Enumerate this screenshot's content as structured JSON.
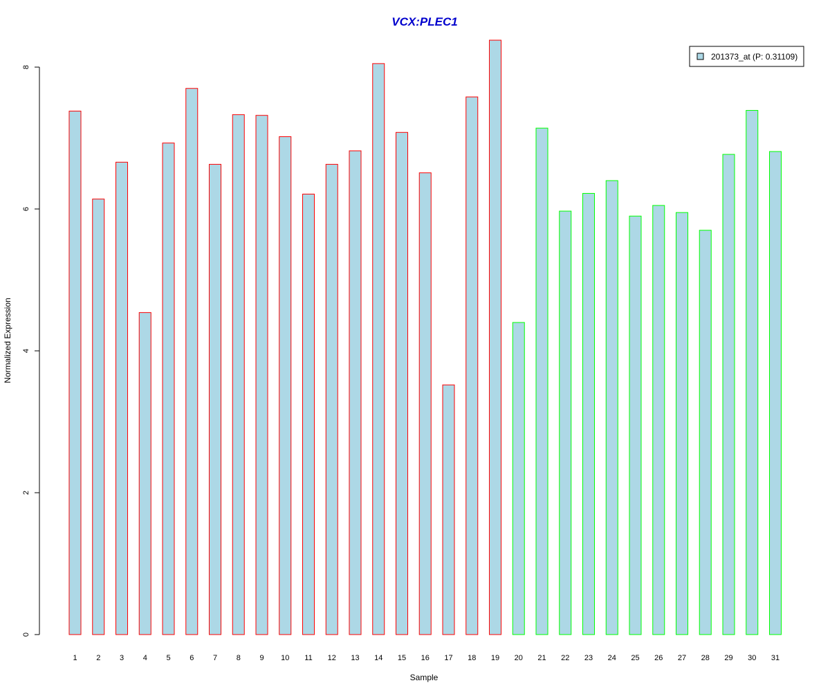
{
  "chart_data": {
    "type": "bar",
    "title": "VCX:PLEC1",
    "title_color": "#0000CD",
    "xlabel": "Sample",
    "ylabel": "Normalized Expression",
    "ylim": [
      0,
      8.4
    ],
    "y_ticks": [
      0,
      2,
      4,
      6,
      8
    ],
    "categories": [
      "1",
      "2",
      "3",
      "4",
      "5",
      "6",
      "7",
      "8",
      "9",
      "10",
      "11",
      "12",
      "13",
      "14",
      "15",
      "16",
      "17",
      "18",
      "19",
      "20",
      "21",
      "22",
      "23",
      "24",
      "25",
      "26",
      "27",
      "28",
      "29",
      "30",
      "31"
    ],
    "series": [
      {
        "name": "201373_at (P: 0.31109)",
        "fill_color": "#ADD8E6",
        "values": [
          7.38,
          6.14,
          6.66,
          4.54,
          6.93,
          7.7,
          6.63,
          7.33,
          7.32,
          7.02,
          6.21,
          6.63,
          6.82,
          8.05,
          7.08,
          6.51,
          3.52,
          7.58,
          8.38,
          4.4,
          7.14,
          5.97,
          6.22,
          6.4,
          5.9,
          6.05,
          5.95,
          5.7,
          6.77,
          7.39,
          6.81
        ]
      }
    ],
    "group_border_colors": [
      "#FF0000",
      "#FF0000",
      "#FF0000",
      "#FF0000",
      "#FF0000",
      "#FF0000",
      "#FF0000",
      "#FF0000",
      "#FF0000",
      "#FF0000",
      "#FF0000",
      "#FF0000",
      "#FF0000",
      "#FF0000",
      "#FF0000",
      "#FF0000",
      "#FF0000",
      "#FF0000",
      "#FF0000",
      "#00FF00",
      "#00FF00",
      "#00FF00",
      "#00FF00",
      "#00FF00",
      "#00FF00",
      "#00FF00",
      "#00FF00",
      "#00FF00",
      "#00FF00",
      "#00FF00",
      "#00FF00"
    ],
    "grid": false,
    "legend_position": "top-right"
  }
}
